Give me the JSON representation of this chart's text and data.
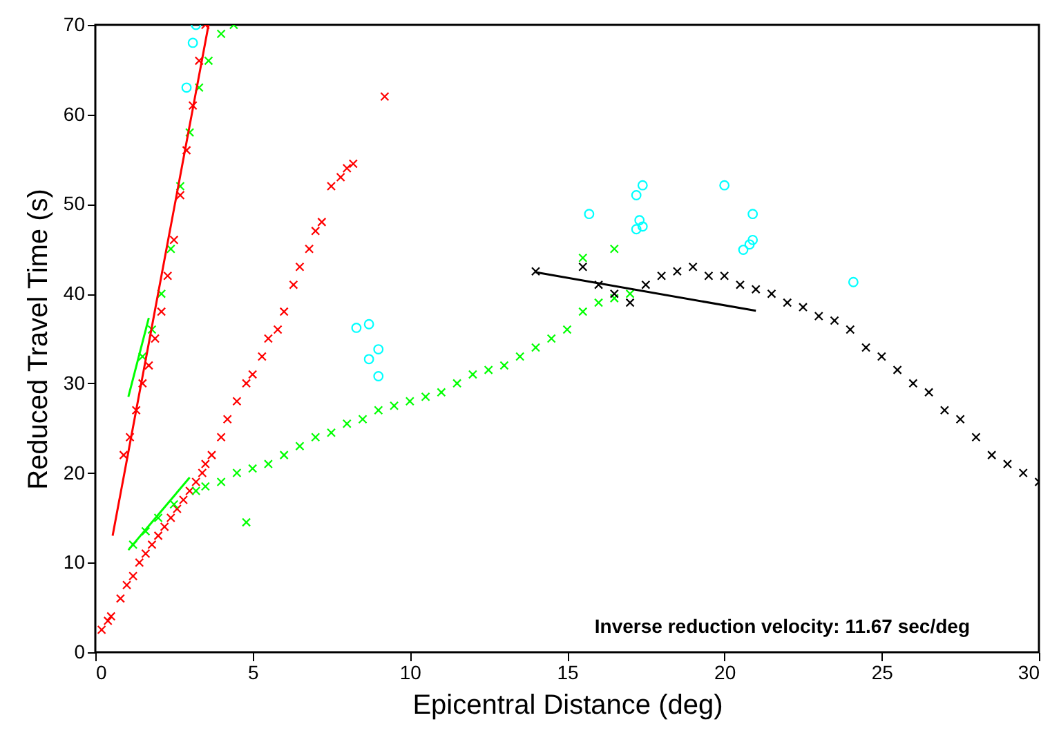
{
  "chart_data": {
    "type": "scatter",
    "xlabel": "Epicentral Distance (deg)",
    "ylabel": "Reduced Travel Time (s)",
    "xlim": [
      0,
      30
    ],
    "ylim": [
      0,
      70
    ],
    "xticks": [
      0,
      5,
      10,
      15,
      20,
      25,
      30
    ],
    "yticks": [
      0,
      10,
      20,
      30,
      40,
      50,
      60,
      70
    ],
    "grid": false,
    "annotations": [
      "Inverse reduction velocity: 11.67 sec/deg"
    ],
    "series": [
      {
        "marker": "cross",
        "color": "#ff0000",
        "x": [
          0.2,
          0.4,
          0.5,
          0.8,
          1.0,
          1.2,
          1.4,
          1.6,
          1.8,
          2.0,
          2.2,
          2.4,
          2.6,
          2.8,
          3.0,
          3.2,
          3.4,
          3.5,
          3.7,
          4.0,
          4.2,
          4.5,
          4.8,
          5.0,
          5.3,
          5.5,
          5.8,
          6.0,
          6.3,
          6.5,
          6.8,
          7.0,
          7.2,
          7.5,
          7.8,
          8.0,
          8.2,
          9.2,
          0.9,
          1.1,
          1.3,
          1.5,
          1.7,
          1.9,
          2.1,
          2.3,
          2.5,
          2.7,
          2.9,
          3.1,
          3.3,
          3.5
        ],
        "values": [
          2.5,
          3.5,
          4,
          6,
          7.5,
          8.5,
          10,
          11,
          12,
          13,
          14,
          15,
          16,
          17,
          18,
          19,
          20,
          21,
          22,
          24,
          26,
          28,
          30,
          31,
          33,
          35,
          36,
          38,
          41,
          43,
          45,
          47,
          48,
          52,
          53,
          54,
          54.5,
          62,
          22,
          24,
          27,
          30,
          32,
          35,
          38,
          42,
          46,
          51,
          56,
          61,
          66,
          70
        ]
      },
      {
        "marker": "cross",
        "color": "#00ff00",
        "x": [
          1.5,
          1.8,
          2.1,
          2.4,
          2.7,
          3.0,
          3.3,
          3.6,
          4.0,
          4.4,
          1.2,
          1.6,
          2.0,
          2.5,
          3.2,
          3.5,
          4.0,
          4.5,
          4.8,
          5.0,
          5.5,
          6.0,
          6.5,
          7.0,
          7.5,
          8.0,
          8.5,
          9.0,
          9.5,
          10.0,
          10.5,
          11.0,
          11.5,
          12.0,
          12.5,
          13.0,
          13.5,
          14.0,
          14.5,
          15.0,
          15.5,
          16.0,
          16.5,
          17.0,
          15.5,
          16.5
        ],
        "values": [
          33,
          36,
          40,
          45,
          52,
          58,
          63,
          66,
          69,
          70,
          12,
          13.5,
          15,
          16.5,
          18,
          18.5,
          19,
          20,
          14.5,
          20.5,
          21,
          22,
          23,
          24,
          24.5,
          25.5,
          26,
          27,
          27.5,
          28,
          28.5,
          29,
          30,
          31,
          31.5,
          32,
          33,
          34,
          35,
          36,
          38,
          39,
          39.5,
          40,
          44,
          45
        ]
      },
      {
        "marker": "cross",
        "color": "#000000",
        "x": [
          14.0,
          15.5,
          16.0,
          16.5,
          17.0,
          17.5,
          18.0,
          18.5,
          19.0,
          19.5,
          20.0,
          20.5,
          21.0,
          21.5,
          22.0,
          22.5,
          23.0,
          23.5,
          24.0,
          24.5,
          25.0,
          25.5,
          26.0,
          26.5,
          27.0,
          27.5,
          28.0,
          28.5,
          29.0,
          29.5,
          30.0
        ],
        "values": [
          42.5,
          43,
          41,
          40,
          39,
          41,
          42,
          42.5,
          43,
          42,
          42,
          41,
          40.5,
          40,
          39,
          38.5,
          37.5,
          37,
          36,
          34,
          33,
          31.5,
          30,
          29,
          27,
          26,
          24,
          22,
          21,
          20,
          19
        ]
      },
      {
        "marker": "circle",
        "color": "#00ffff",
        "x": [
          2.9,
          3.1,
          3.2,
          8.3,
          8.7,
          9.0,
          8.7,
          9.0,
          15.7,
          17.2,
          17.4,
          17.3,
          17.2,
          17.4,
          20.0,
          20.9,
          20.9,
          20.8,
          20.6,
          24.1
        ],
        "values": [
          63,
          68,
          70,
          36.2,
          36.6,
          33.8,
          32.7,
          30.8,
          48.9,
          51,
          52.1,
          48.2,
          47.2,
          47.5,
          52.1,
          48.9,
          46,
          45.5,
          44.9,
          41.3
        ]
      },
      {
        "type": "line",
        "marker": "none",
        "color": "#ff0000",
        "x": [
          0.55,
          3.6
        ],
        "values": [
          13,
          70
        ]
      },
      {
        "type": "line",
        "marker": "none",
        "color": "#00ff00",
        "x": [
          1.05,
          1.7
        ],
        "values": [
          28.5,
          37.3
        ]
      },
      {
        "type": "line",
        "marker": "none",
        "color": "#00ff00",
        "x": [
          1.05,
          3.0
        ],
        "values": [
          11.4,
          19.5
        ]
      },
      {
        "type": "line",
        "marker": "none",
        "color": "#000000",
        "x": [
          14.0,
          21.0
        ],
        "values": [
          42.4,
          38.1
        ]
      }
    ]
  }
}
